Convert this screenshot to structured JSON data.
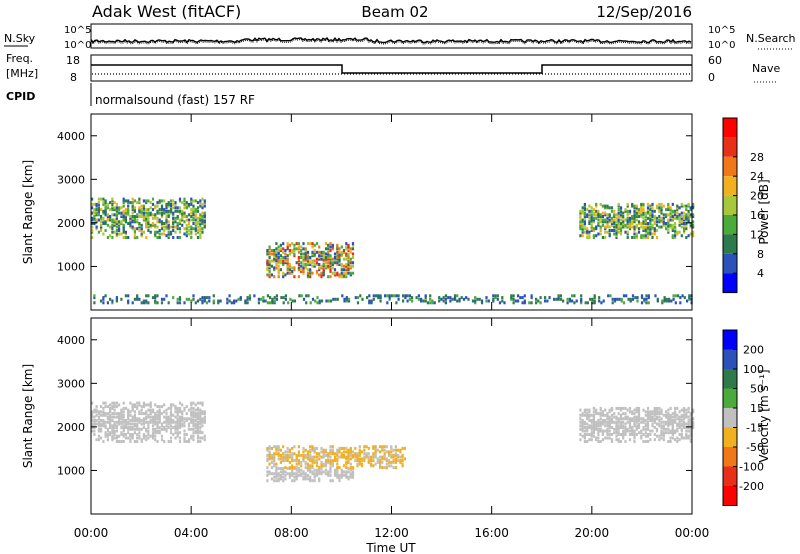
{
  "header": {
    "station": "Adak West (fitACF)",
    "beam": "Beam 02",
    "date": "12/Sep/2016"
  },
  "strip_labels": {
    "nsky": "N.Sky",
    "nsearch": "N.Search",
    "freq_line1": "Freq.",
    "freq_line2": "[MHz]",
    "nave": "Nave",
    "cpid": "CPID",
    "program": "normalsound (fast) 157 RF"
  },
  "strip_ticks": {
    "noise_left": [
      "10^5",
      "10^0"
    ],
    "noise_right": [
      "10^5",
      "10^0"
    ],
    "freq_left": [
      "18",
      "8"
    ],
    "nave_right": [
      "60",
      "0"
    ]
  },
  "colors": {
    "power_scale": [
      "#0000ff",
      "#2a52b8",
      "#2e7a4a",
      "#4aaa3a",
      "#a8c83c",
      "#f0b020",
      "#f07818",
      "#e83018",
      "#ff0000"
    ],
    "velocity_scale": [
      "#0000ff",
      "#2a52b8",
      "#2e7a4a",
      "#4aaa3a",
      "#c0c0c0",
      "#f0b020",
      "#f07818",
      "#e83018",
      "#ff0000"
    ]
  },
  "chart_data": [
    {
      "type": "heatmap",
      "title": "",
      "xlabel": "",
      "ylabel": "Slant Range [km]",
      "colorbar_label": "Power [dB]",
      "colorbar_ticks": [
        "4",
        "8",
        "12",
        "16",
        "20",
        "24",
        "28"
      ],
      "clim": [
        0,
        32
      ],
      "ylim": [
        0,
        4500
      ],
      "y_ticks": [
        "1000",
        "2000",
        "3000",
        "4000"
      ],
      "grid": false,
      "echo_regions": [
        {
          "t_start": "00:00",
          "t_end": "04:30",
          "range_km": [
            1700,
            2600
          ],
          "power_db": [
            4,
            20
          ]
        },
        {
          "t_start": "07:00",
          "t_end": "10:30",
          "range_km": [
            800,
            1600
          ],
          "power_db": [
            4,
            28
          ]
        },
        {
          "t_start": "19:30",
          "t_end": "24:00",
          "range_km": [
            1700,
            2500
          ],
          "power_db": [
            4,
            20
          ]
        },
        {
          "t_start": "00:00",
          "t_end": "24:00",
          "range_km": [
            200,
            400
          ],
          "power_db": [
            4,
            12
          ]
        }
      ]
    },
    {
      "type": "heatmap",
      "title": "",
      "xlabel": "Time UT",
      "ylabel": "Slant Range [km]",
      "colorbar_label": "Velocity [m s⁻¹]",
      "colorbar_ticks": [
        "200",
        "100",
        "50",
        "15",
        "-15",
        "-50",
        "-100",
        "-200"
      ],
      "clim": [
        -250,
        250
      ],
      "ylim": [
        0,
        4500
      ],
      "y_ticks": [
        "1000",
        "2000",
        "3000",
        "4000"
      ],
      "x_ticks": [
        "00:00",
        "04:00",
        "08:00",
        "12:00",
        "16:00",
        "20:00",
        "00:00"
      ],
      "grid": false,
      "echo_regions": [
        {
          "t_start": "00:00",
          "t_end": "04:30",
          "range_km": [
            1700,
            2600
          ],
          "velocity": [
            -15,
            15
          ]
        },
        {
          "t_start": "07:00",
          "t_end": "10:30",
          "range_km": [
            800,
            1100
          ],
          "velocity": [
            -15,
            15
          ]
        },
        {
          "t_start": "07:00",
          "t_end": "12:30",
          "range_km": [
            1100,
            1600
          ],
          "velocity": [
            -50,
            -15
          ]
        },
        {
          "t_start": "19:30",
          "t_end": "24:00",
          "range_km": [
            1700,
            2500
          ],
          "velocity": [
            -15,
            15
          ]
        }
      ]
    }
  ]
}
